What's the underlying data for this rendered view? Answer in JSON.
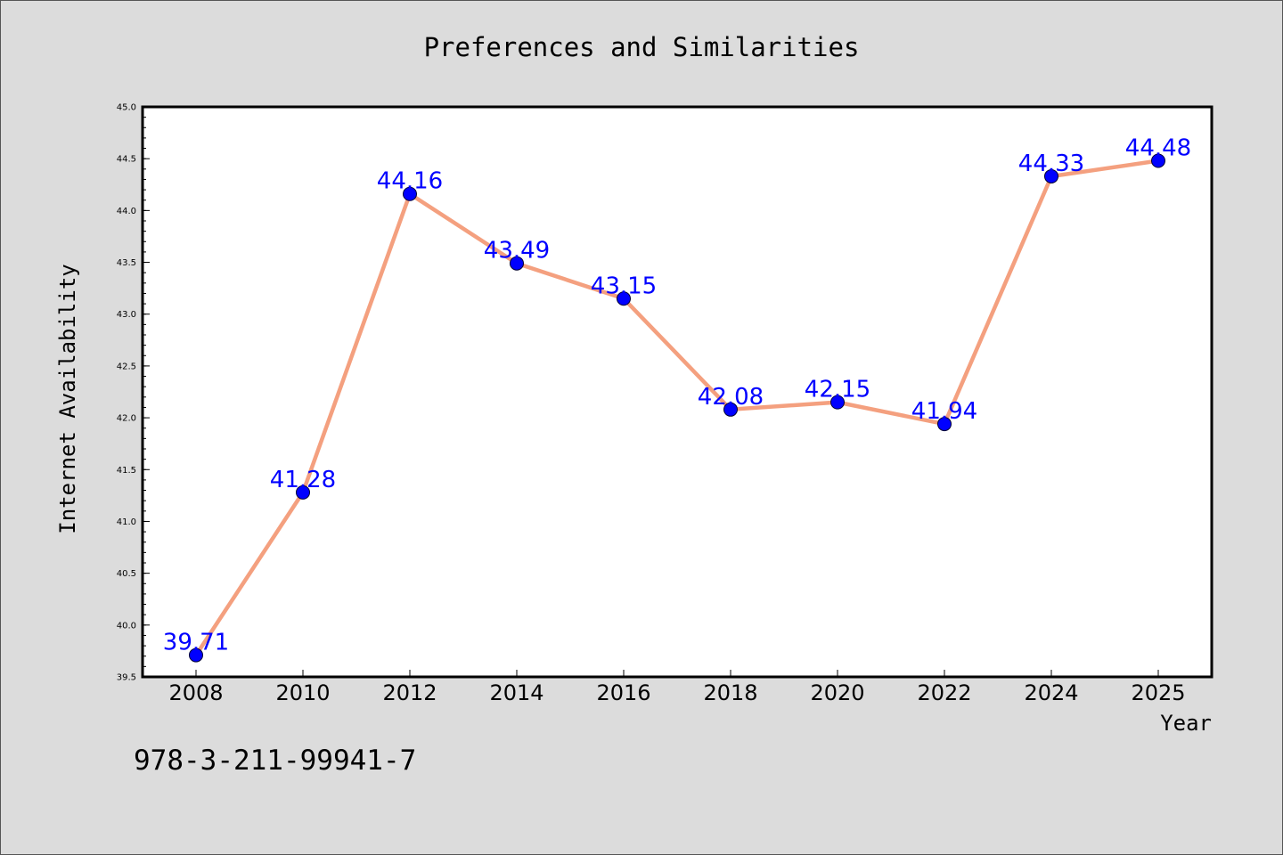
{
  "chart_data": {
    "type": "line",
    "title": "Preferences and Similarities",
    "xlabel": "Year",
    "ylabel": "Internet Availability",
    "categories": [
      "2008",
      "2010",
      "2012",
      "2014",
      "2016",
      "2018",
      "2020",
      "2022",
      "2024",
      "2025"
    ],
    "values": [
      39.71,
      41.28,
      44.16,
      43.49,
      43.15,
      42.08,
      42.15,
      41.94,
      44.33,
      44.48
    ],
    "value_labels": [
      "39.71",
      "41.28",
      "44.16",
      "43.49",
      "43.15",
      "42.08",
      "42.15",
      "41.94",
      "44.33",
      "44.48"
    ],
    "ylim": [
      39.5,
      45.0
    ],
    "yticks": [
      "39.5",
      "40.0",
      "40.5",
      "41.0",
      "41.5",
      "42.0",
      "42.5",
      "43.0",
      "43.5",
      "44.0",
      "44.5",
      "45.0"
    ],
    "grid": false,
    "line_color": "#f4a07f",
    "marker_color": "#0000ff",
    "label_color": "#0000ff"
  },
  "annotation": "978-3-211-99941-7"
}
